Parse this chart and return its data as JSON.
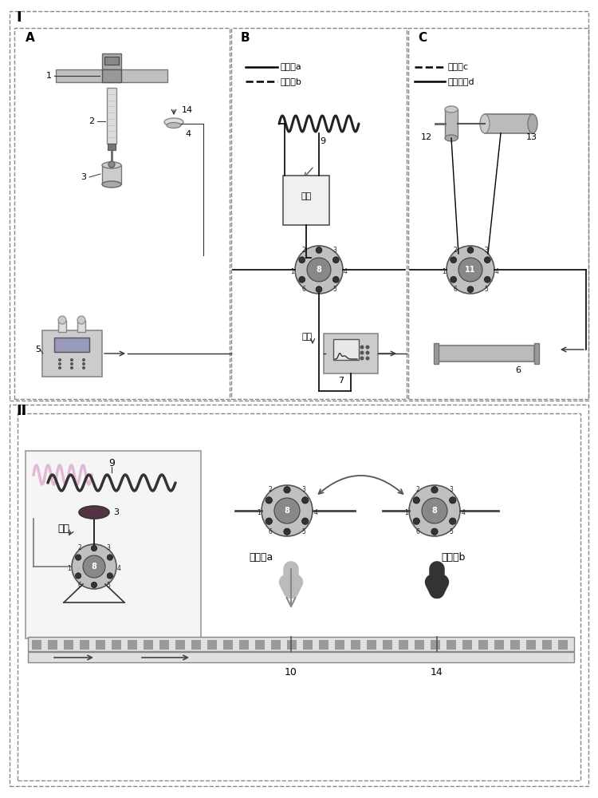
{
  "title_I": "I",
  "title_II": "II",
  "panel_A_label": "A",
  "panel_B_label": "B",
  "panel_C_label": "C",
  "bg_color": "#ffffff",
  "legend_B": [
    [
      "载样档a",
      "solid"
    ],
    [
      "进样档b",
      "dashed"
    ]
  ],
  "legend_C": [
    [
      "混合档c",
      "dashed"
    ],
    [
      "非混合档d",
      "solid"
    ]
  ],
  "text_feiye": "废液",
  "text_zaiyang": "载样档a",
  "text_jinyang": "进样档b",
  "text_10": "10",
  "text_14": "14"
}
